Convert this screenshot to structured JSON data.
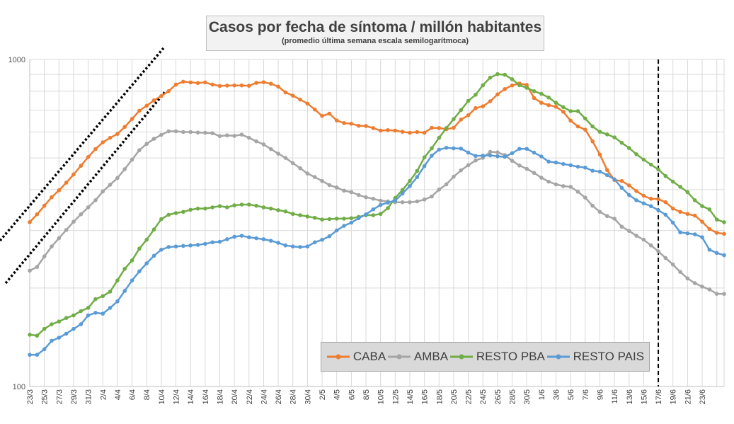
{
  "chart_data": {
    "type": "line",
    "title": "Casos por fecha de síntoma / millón habitantes",
    "subtitle": "(promedio última semana escala semilogarítmoca)",
    "y_scale": "log",
    "ylim": [
      100,
      1000
    ],
    "y_ticks": [
      "100",
      "1000"
    ],
    "grid": true,
    "legend_position": "bottom-right",
    "x_labels": [
      "23/3",
      "25/3",
      "27/3",
      "29/3",
      "31/3",
      "2/4",
      "4/4",
      "6/4",
      "8/4",
      "10/4",
      "12/4",
      "14/4",
      "16/4",
      "18/4",
      "20/4",
      "22/4",
      "24/4",
      "26/4",
      "28/4",
      "30/4",
      "2/5",
      "4/5",
      "6/5",
      "8/5",
      "10/5",
      "12/5",
      "14/5",
      "16/5",
      "18/5",
      "20/5",
      "22/5",
      "24/5",
      "26/5",
      "28/5",
      "30/5",
      "1/6",
      "3/6",
      "5/6",
      "7/6",
      "9/6",
      "11/6",
      "13/6",
      "15/6",
      "17/6",
      "19/6",
      "21/6",
      "23/6"
    ],
    "series": [
      {
        "name": "CABA",
        "color": "#ed7d31",
        "values": [
          318,
          336,
          357,
          379,
          398,
          420,
          445,
          473,
          503,
          532,
          558,
          576,
          592,
          622,
          658,
          697,
          722,
          750,
          773,
          800,
          838,
          855,
          851,
          847,
          851,
          838,
          830,
          832,
          833,
          833,
          831,
          848,
          852,
          843,
          826,
          793,
          775,
          754,
          733,
          703,
          672,
          683,
          651,
          639,
          636,
          627,
          626,
          617,
          606,
          608,
          606,
          601,
          597,
          600,
          597,
          618,
          617,
          612,
          618,
          655,
          675,
          710,
          719,
          745,
          782,
          812,
          833,
          844,
          836,
          762,
          737,
          725,
          717,
          692,
          650,
          624,
          610,
          562,
          512,
          459,
          428,
          425,
          412,
          396,
          383,
          375,
          374,
          366,
          350,
          342,
          337,
          333,
          319,
          303,
          295,
          293
        ]
      },
      {
        "name": "AMBA",
        "color": "#a5a5a5",
        "values": [
          226,
          232,
          250,
          268,
          284,
          301,
          319,
          336,
          353,
          371,
          395,
          414,
          434,
          462,
          494,
          528,
          552,
          572,
          588,
          603,
          603,
          600,
          600,
          598,
          597,
          595,
          583,
          586,
          584,
          589,
          576,
          562,
          550,
          532,
          515,
          500,
          482,
          465,
          448,
          437,
          425,
          413,
          406,
          397,
          393,
          385,
          379,
          375,
          370,
          368,
          366,
          366,
          366,
          368,
          373,
          381,
          400,
          415,
          438,
          458,
          475,
          491,
          500,
          522,
          520,
          510,
          490,
          474,
          463,
          450,
          435,
          423,
          415,
          410,
          408,
          394,
          378,
          357,
          342,
          332,
          326,
          308,
          299,
          289,
          281,
          270,
          259,
          247,
          236,
          224,
          214,
          207,
          202,
          198,
          192,
          192
        ]
      },
      {
        "name": "RESTO PBA",
        "color": "#70ad47",
        "values": [
          144,
          143,
          150,
          155,
          158,
          162,
          165,
          170,
          174,
          185,
          189,
          195,
          211,
          229,
          243,
          264,
          281,
          302,
          325,
          335,
          339,
          342,
          347,
          350,
          350,
          353,
          356,
          353,
          358,
          360,
          360,
          357,
          353,
          350,
          346,
          343,
          337,
          334,
          331,
          328,
          324,
          325,
          326,
          326,
          327,
          330,
          334,
          334,
          337,
          351,
          377,
          399,
          425,
          456,
          502,
          535,
          576,
          617,
          657,
          700,
          747,
          780,
          834,
          880,
          902,
          898,
          870,
          834,
          819,
          800,
          785,
          765,
          737,
          715,
          695,
          695,
          660,
          624,
          601,
          590,
          578,
          556,
          536,
          513,
          494,
          477,
          461,
          440,
          423,
          408,
          393,
          371,
          356,
          348,
          324,
          318
        ]
      },
      {
        "name": "RESTO PAIS",
        "color": "#5b9bd5",
        "values": [
          125,
          125,
          130,
          138,
          141,
          145,
          150,
          155,
          165,
          168,
          167,
          174,
          182,
          196,
          211,
          225,
          238,
          251,
          262,
          267,
          268,
          269,
          270,
          271,
          273,
          276,
          277,
          282,
          287,
          289,
          286,
          284,
          282,
          279,
          275,
          270,
          268,
          267,
          268,
          276,
          281,
          288,
          300,
          310,
          317,
          327,
          336,
          348,
          359,
          365,
          370,
          389,
          410,
          437,
          472,
          508,
          530,
          537,
          535,
          534,
          519,
          507,
          508,
          509,
          506,
          504,
          517,
          533,
          533,
          519,
          505,
          487,
          484,
          479,
          475,
          470,
          467,
          457,
          454,
          443,
          430,
          405,
          385,
          371,
          363,
          356,
          346,
          335,
          317,
          296,
          294,
          292,
          286,
          262,
          256,
          252
        ]
      }
    ],
    "annotations": [
      {
        "type": "trend_line",
        "style": "dotted"
      },
      {
        "type": "trend_line",
        "style": "dotted"
      },
      {
        "type": "vertical_line",
        "style": "dashed",
        "at": "17/6"
      }
    ]
  }
}
